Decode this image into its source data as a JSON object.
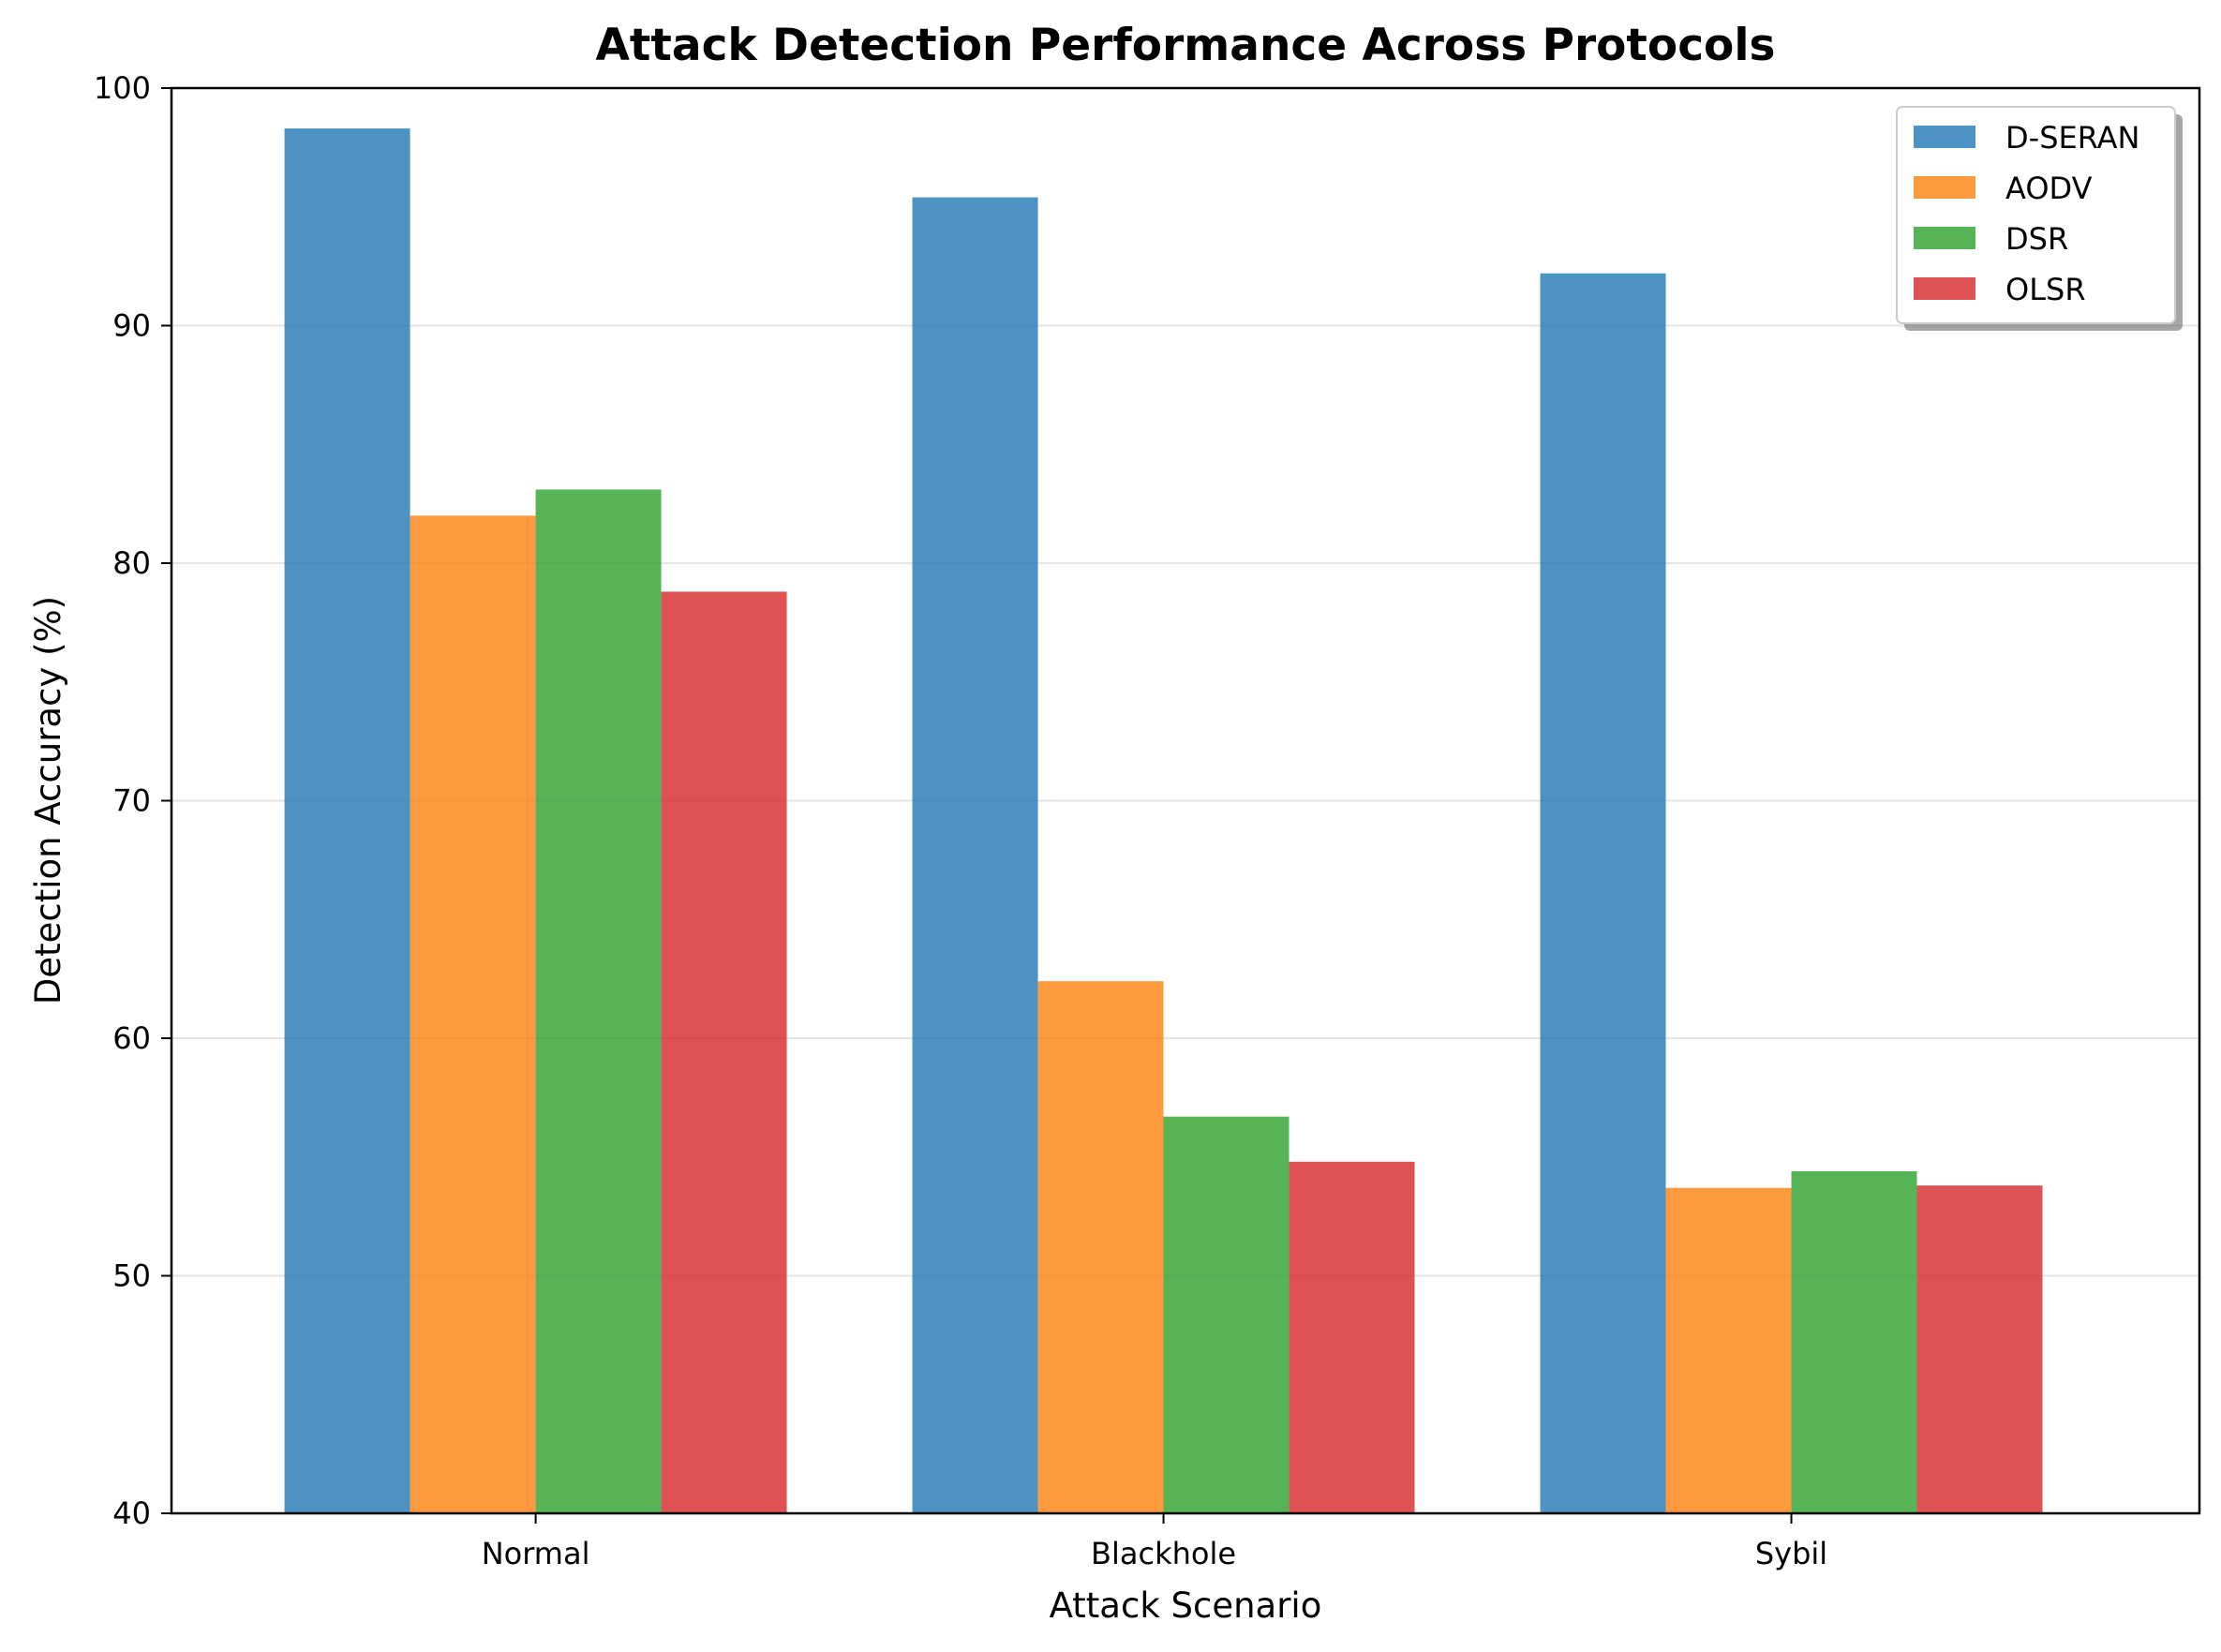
{
  "chart_data": {
    "type": "bar",
    "title": "Attack Detection Performance Across Protocols",
    "xlabel": "Attack Scenario",
    "ylabel": "Detection Accuracy (%)",
    "categories": [
      "Normal",
      "Blackhole",
      "Sybil"
    ],
    "series": [
      {
        "name": "D-SERAN",
        "values": [
          98.3,
          95.4,
          92.2
        ],
        "color": "#1f77b4"
      },
      {
        "name": "AODV",
        "values": [
          82.0,
          62.4,
          53.7
        ],
        "color": "#ff7f0e"
      },
      {
        "name": "DSR",
        "values": [
          83.1,
          56.7,
          54.4
        ],
        "color": "#2ca02c"
      },
      {
        "name": "OLSR",
        "values": [
          78.8,
          54.8,
          53.8
        ],
        "color": "#d62728"
      }
    ],
    "ylim": [
      40,
      100
    ],
    "yticks": [
      40,
      50,
      60,
      70,
      80,
      90,
      100
    ],
    "grid": "horizontal",
    "legend_position": "top-right",
    "bar_opacity": 0.8
  }
}
